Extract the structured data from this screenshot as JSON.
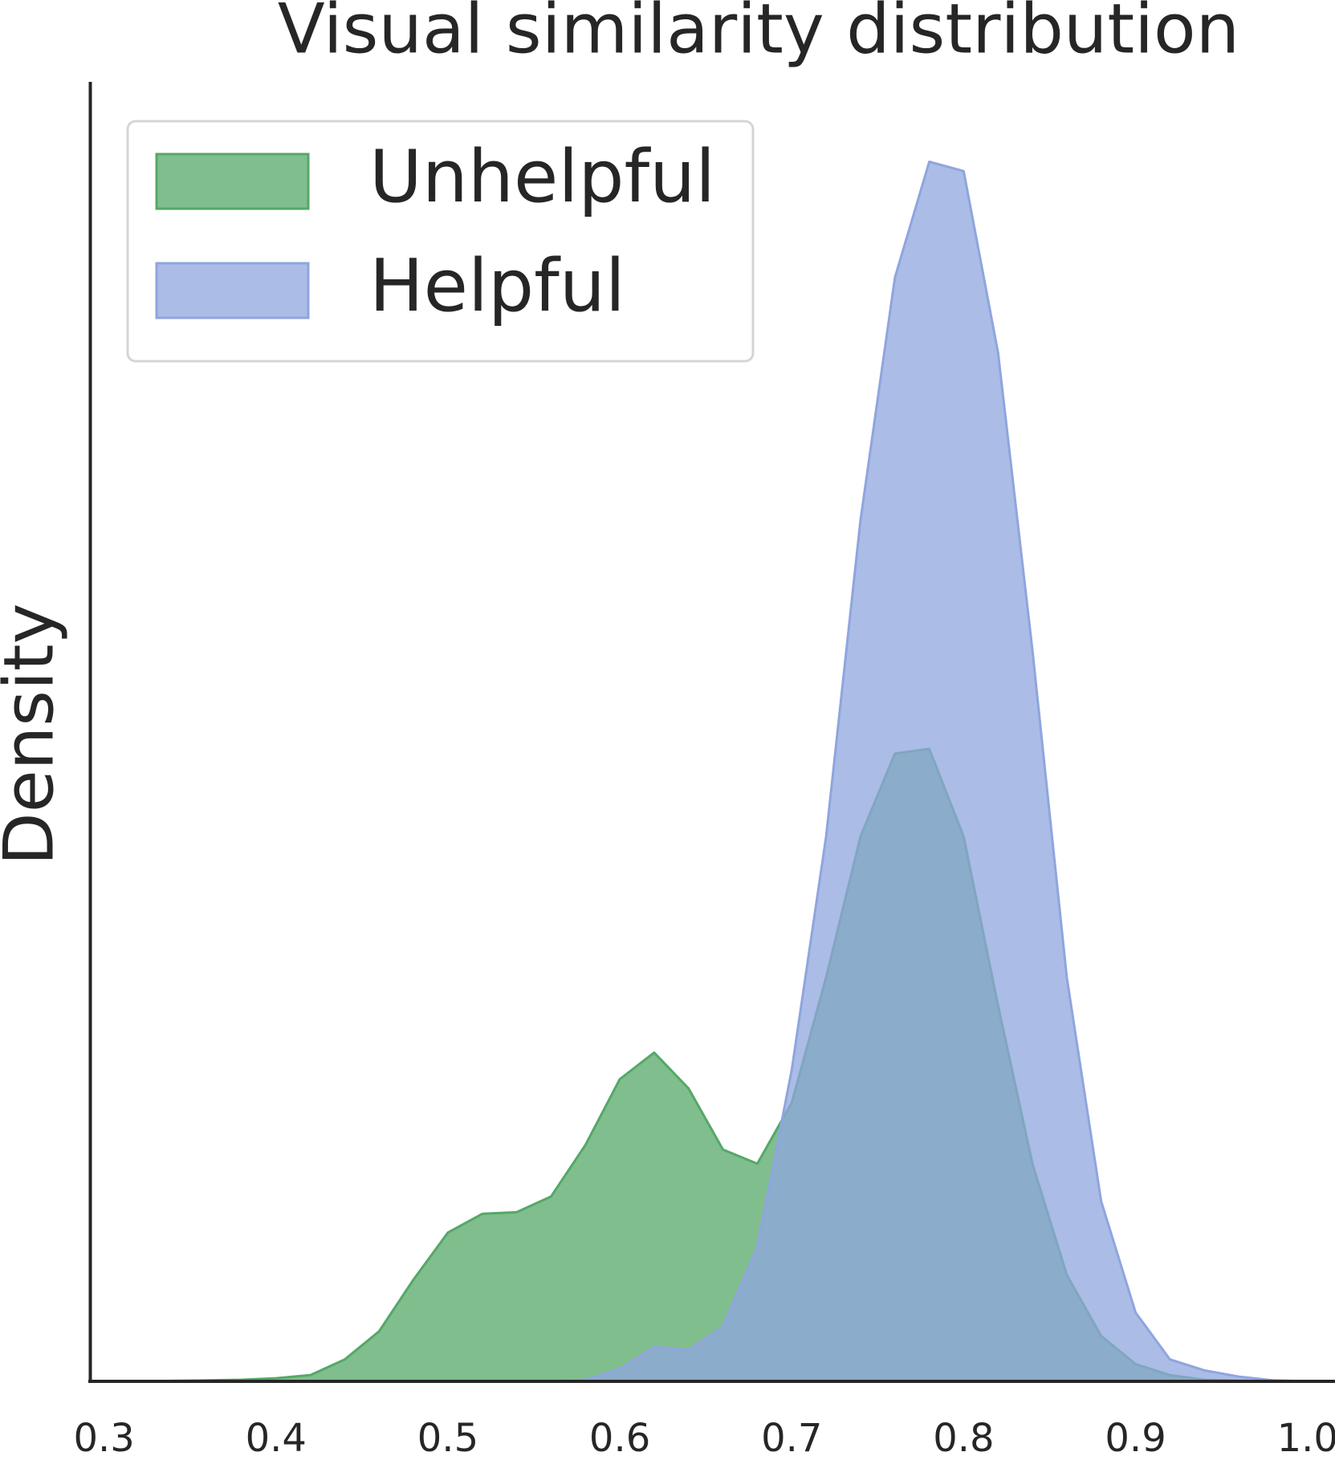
{
  "chart_data": {
    "type": "area",
    "title": "Visual similarity distribution",
    "y_label": "Density",
    "x": [
      0.3,
      0.32,
      0.34,
      0.36,
      0.38,
      0.4,
      0.42,
      0.44,
      0.46,
      0.48,
      0.5,
      0.52,
      0.54,
      0.56,
      0.58,
      0.6,
      0.62,
      0.64,
      0.66,
      0.68,
      0.7,
      0.72,
      0.74,
      0.76,
      0.78,
      0.8,
      0.82,
      0.84,
      0.86,
      0.88,
      0.9,
      0.92,
      0.94,
      0.96,
      0.98,
      1.0
    ],
    "series": [
      {
        "name": "Unhelpful",
        "color": "#55a868",
        "values": [
          0,
          0,
          0.003,
          0.006,
          0.01,
          0.02,
          0.04,
          0.14,
          0.32,
          0.65,
          0.95,
          1.07,
          1.08,
          1.18,
          1.51,
          1.93,
          2.1,
          1.87,
          1.48,
          1.39,
          1.78,
          2.58,
          3.48,
          4.01,
          4.04,
          3.48,
          2.4,
          1.39,
          0.68,
          0.29,
          0.11,
          0.04,
          0.01,
          0.005,
          0,
          0
        ]
      },
      {
        "name": "Helpful",
        "color": "#8fa5de",
        "values": [
          0,
          0,
          0,
          0,
          0,
          0,
          0,
          0,
          0,
          0,
          0,
          0,
          0,
          0,
          0.01,
          0.08,
          0.22,
          0.2,
          0.35,
          0.86,
          1.99,
          3.48,
          5.5,
          7.05,
          7.79,
          7.73,
          6.57,
          4.67,
          2.58,
          1.15,
          0.44,
          0.14,
          0.07,
          0.03,
          0.006,
          0
        ]
      }
    ],
    "xlim": [
      0.292,
      1.016
    ],
    "xticks": [
      0.3,
      0.4,
      0.5,
      0.6,
      0.7,
      0.8,
      0.9,
      {
        "value": 1,
        "label": "1.0"
      }
    ],
    "ylim": [
      0,
      8.3
    ],
    "legend": "upper left",
    "fill_opacity": 0.75
  }
}
